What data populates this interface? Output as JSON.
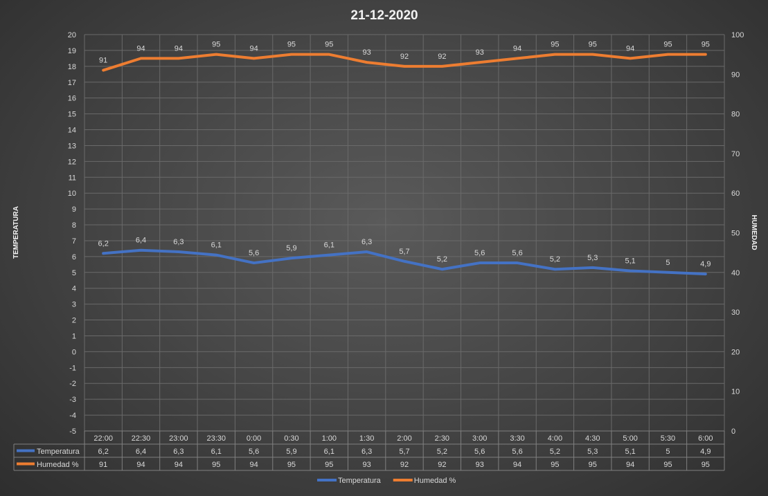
{
  "chart_data": {
    "type": "line",
    "title": "21-12-2020",
    "ylabel": "TEMPERATURA",
    "y2label": "HUMEDAD",
    "ylim": [
      -5,
      20
    ],
    "y2lim": [
      0,
      100
    ],
    "y_ticks": [
      "20",
      "19",
      "18",
      "17",
      "16",
      "15",
      "14",
      "13",
      "12",
      "11",
      "10",
      "9",
      "8",
      "7",
      "6",
      "5",
      "4",
      "3",
      "2",
      "1",
      "0",
      "-1",
      "-2",
      "-3",
      "-4",
      "-5"
    ],
    "y2_ticks": [
      "100",
      "90",
      "80",
      "70",
      "60",
      "50",
      "40",
      "30",
      "20",
      "10",
      "0"
    ],
    "categories": [
      "22:00",
      "22:30",
      "23:00",
      "23:30",
      "0:00",
      "0:30",
      "1:00",
      "1:30",
      "2:00",
      "2:30",
      "3:00",
      "3:30",
      "4:00",
      "4:30",
      "5:00",
      "5:30",
      "6:00"
    ],
    "series": [
      {
        "name": "Temperatura",
        "axis": "left",
        "color": "#4472c4",
        "values": [
          6.2,
          6.4,
          6.3,
          6.1,
          5.6,
          5.9,
          6.1,
          6.3,
          5.7,
          5.2,
          5.6,
          5.6,
          5.2,
          5.3,
          5.1,
          5,
          4.9
        ],
        "labels": [
          "6,2",
          "6,4",
          "6,3",
          "6,1",
          "5,6",
          "5,9",
          "6,1",
          "6,3",
          "5,7",
          "5,2",
          "5,6",
          "5,6",
          "5,2",
          "5,3",
          "5,1",
          "5",
          "4,9"
        ]
      },
      {
        "name": "Humedad %",
        "axis": "right",
        "color": "#ed7d31",
        "values": [
          91,
          94,
          94,
          95,
          94,
          95,
          95,
          93,
          92,
          92,
          93,
          94,
          95,
          95,
          94,
          95,
          95
        ],
        "labels": [
          "91",
          "94",
          "94",
          "95",
          "94",
          "95",
          "95",
          "93",
          "92",
          "92",
          "93",
          "94",
          "95",
          "95",
          "94",
          "95",
          "95"
        ]
      }
    ],
    "grid": true,
    "legend": "bottom",
    "data_table": true
  }
}
